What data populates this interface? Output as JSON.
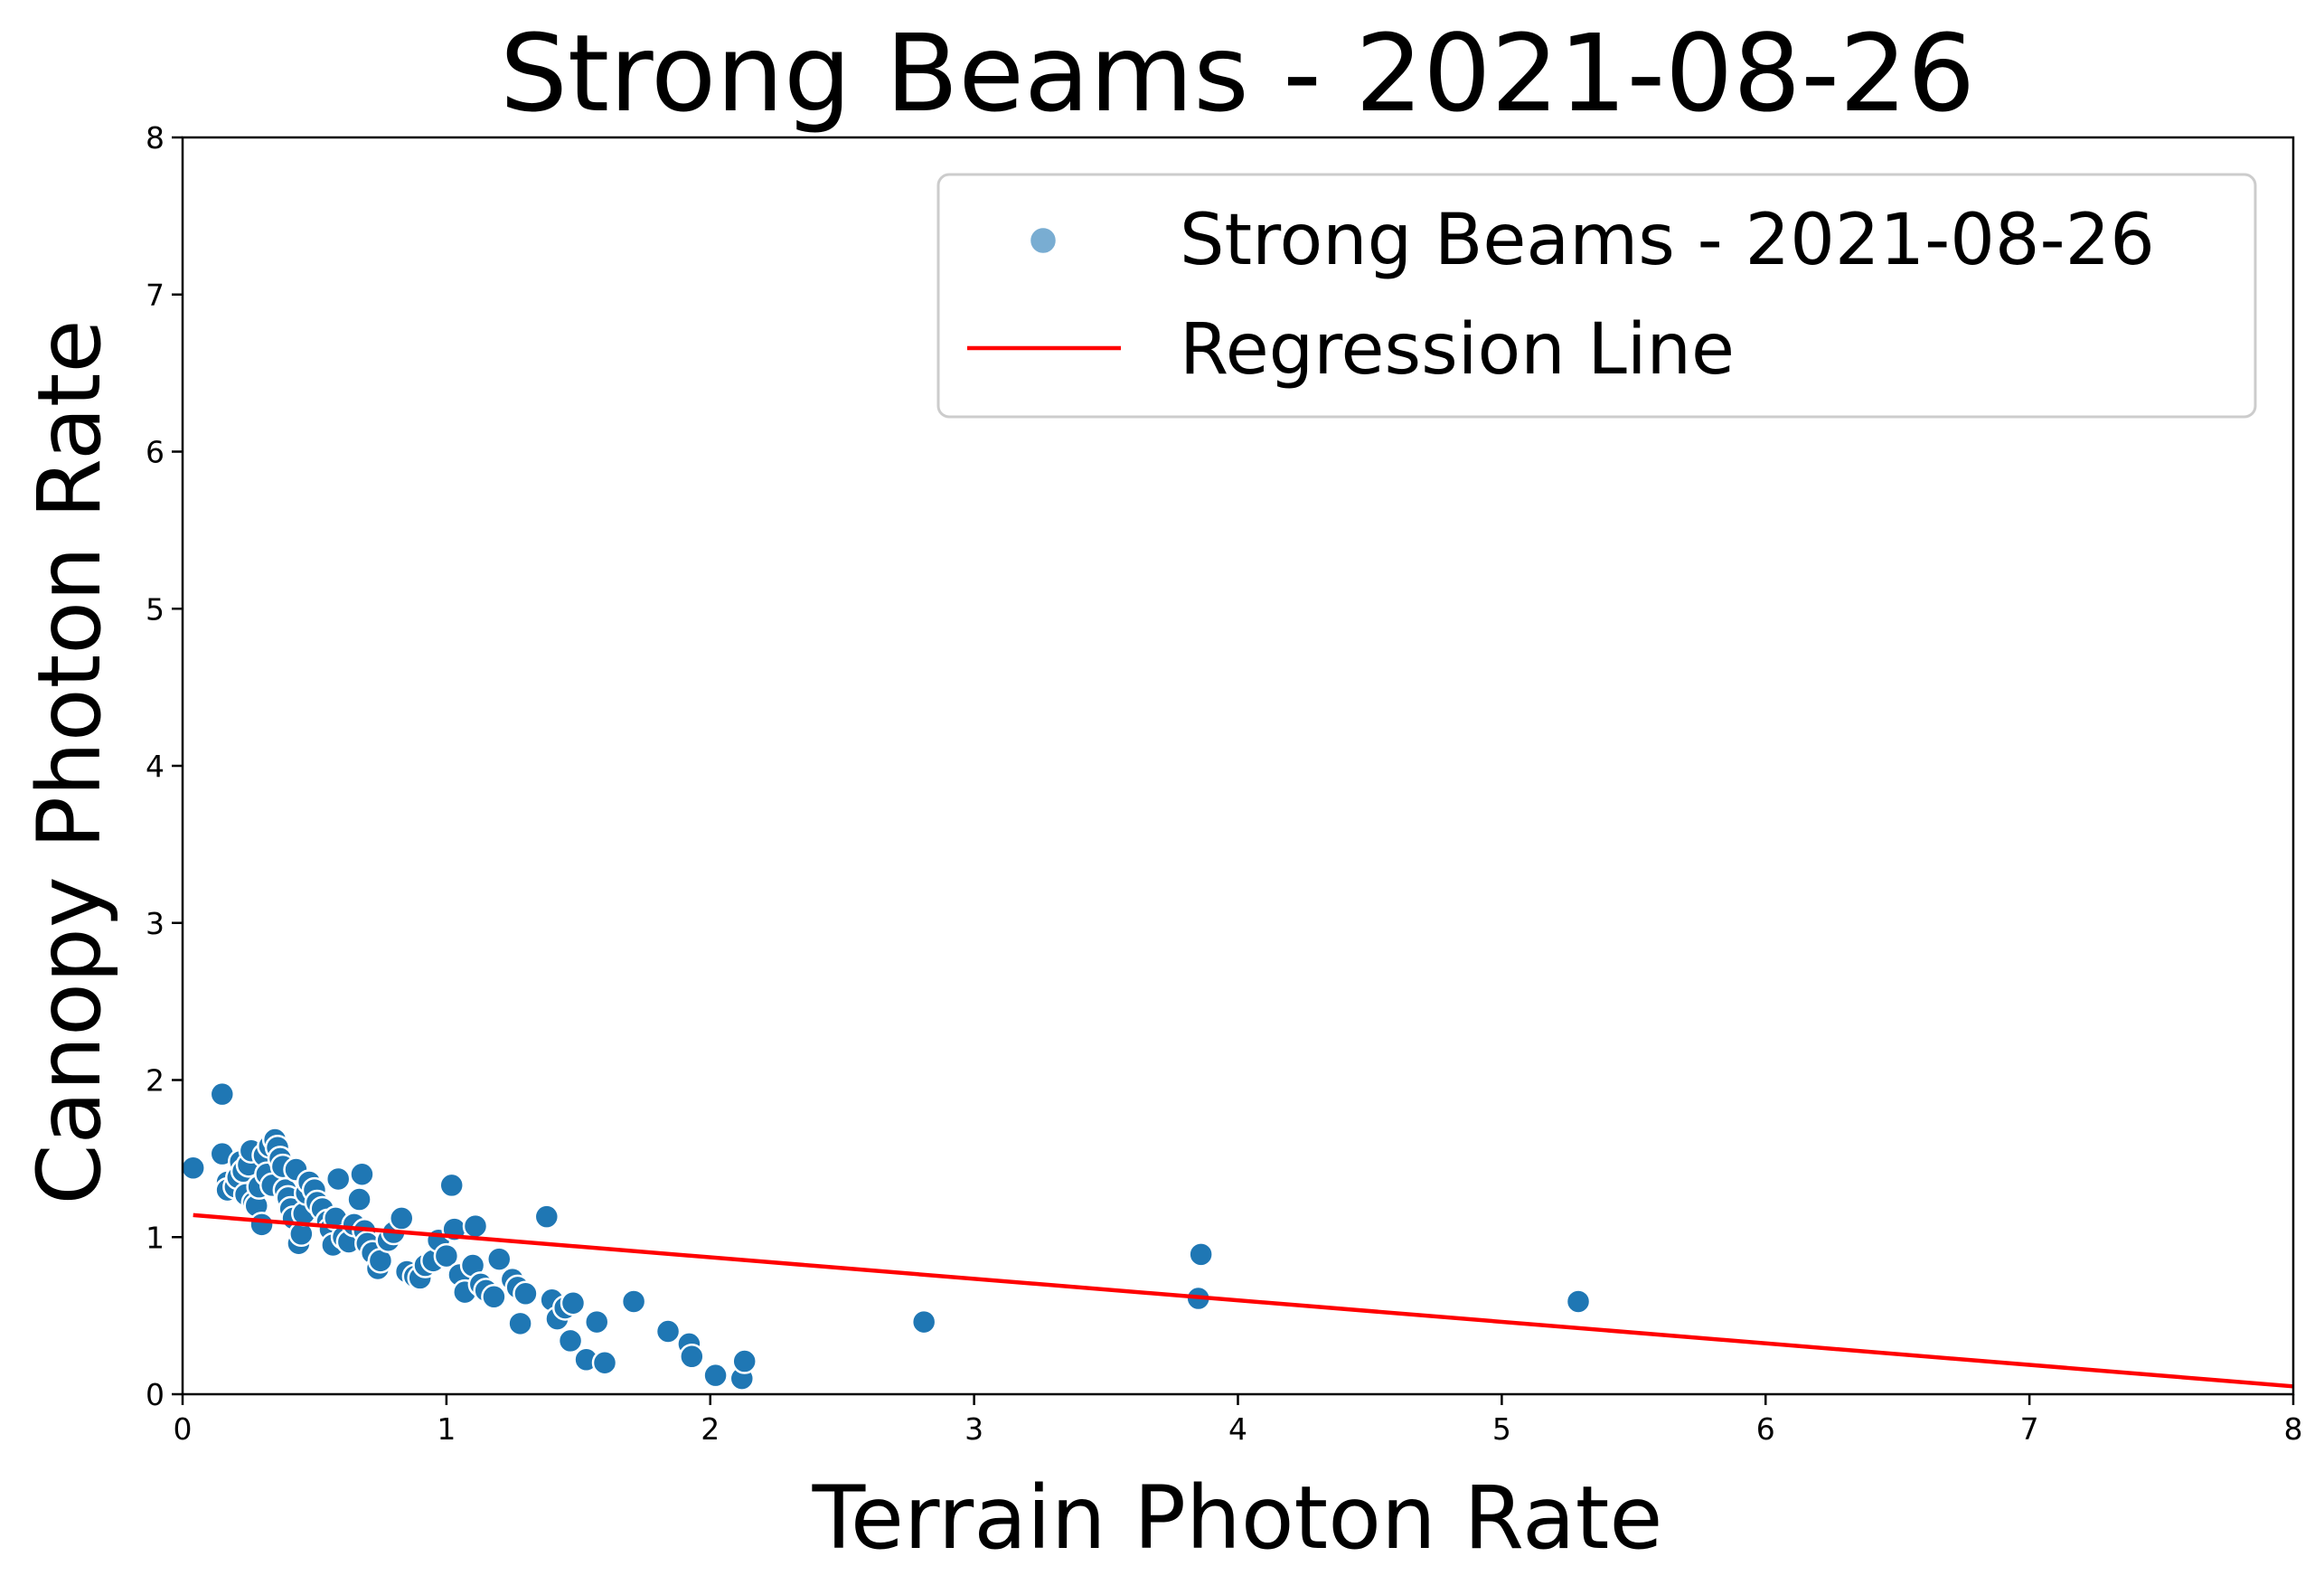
{
  "chart_data": {
    "type": "scatter",
    "title": "Strong Beams - 2021-08-26",
    "xlabel": "Terrain Photon Rate",
    "ylabel": "Canopy Photon Rate",
    "xlim": [
      0,
      8
    ],
    "ylim": [
      0,
      8
    ],
    "xticks": [
      "0",
      "1",
      "2",
      "3",
      "4",
      "5",
      "6",
      "7",
      "8"
    ],
    "yticks": [
      "0",
      "1",
      "2",
      "3",
      "4",
      "5",
      "6",
      "7",
      "8"
    ],
    "grid": false,
    "legend_position": "top-right",
    "colors": {
      "points": "#1f77b4",
      "point_edge": "#ffffff",
      "regression": "#ff0000"
    },
    "series": [
      {
        "name": "Strong Beams - 2021-08-26",
        "kind": "scatter",
        "points": [
          [
            0.04,
            1.44
          ],
          [
            0.15,
            1.91
          ],
          [
            0.15,
            1.53
          ],
          [
            0.17,
            1.35
          ],
          [
            0.17,
            1.3
          ],
          [
            0.2,
            1.32
          ],
          [
            0.21,
            1.38
          ],
          [
            0.22,
            1.48
          ],
          [
            0.23,
            1.42
          ],
          [
            0.24,
            1.27
          ],
          [
            0.25,
            1.46
          ],
          [
            0.26,
            1.55
          ],
          [
            0.27,
            1.22
          ],
          [
            0.28,
            1.2
          ],
          [
            0.29,
            1.32
          ],
          [
            0.3,
            1.08
          ],
          [
            0.31,
            1.52
          ],
          [
            0.32,
            1.4
          ],
          [
            0.33,
            1.58
          ],
          [
            0.34,
            1.33
          ],
          [
            0.35,
            1.62
          ],
          [
            0.36,
            1.57
          ],
          [
            0.37,
            1.5
          ],
          [
            0.38,
            1.45
          ],
          [
            0.39,
            1.3
          ],
          [
            0.4,
            1.25
          ],
          [
            0.41,
            1.18
          ],
          [
            0.42,
            1.12
          ],
          [
            0.43,
            1.43
          ],
          [
            0.44,
            0.96
          ],
          [
            0.45,
            1.02
          ],
          [
            0.46,
            1.15
          ],
          [
            0.47,
            1.28
          ],
          [
            0.48,
            1.35
          ],
          [
            0.5,
            1.3
          ],
          [
            0.51,
            1.22
          ],
          [
            0.53,
            1.18
          ],
          [
            0.55,
            1.1
          ],
          [
            0.56,
            1.05
          ],
          [
            0.57,
            0.95
          ],
          [
            0.58,
            1.12
          ],
          [
            0.59,
            1.37
          ],
          [
            0.61,
            1.0
          ],
          [
            0.63,
            0.97
          ],
          [
            0.65,
            1.08
          ],
          [
            0.67,
            1.24
          ],
          [
            0.68,
            1.4
          ],
          [
            0.69,
            1.04
          ],
          [
            0.7,
            0.96
          ],
          [
            0.72,
            0.9
          ],
          [
            0.74,
            0.8
          ],
          [
            0.75,
            0.85
          ],
          [
            0.78,
            0.98
          ],
          [
            0.8,
            1.03
          ],
          [
            0.83,
            1.12
          ],
          [
            0.85,
            0.78
          ],
          [
            0.88,
            0.75
          ],
          [
            0.9,
            0.74
          ],
          [
            0.92,
            0.82
          ],
          [
            0.95,
            0.85
          ],
          [
            0.97,
            0.98
          ],
          [
            1.0,
            0.88
          ],
          [
            1.02,
            1.33
          ],
          [
            1.03,
            1.05
          ],
          [
            1.05,
            0.76
          ],
          [
            1.07,
            0.65
          ],
          [
            1.1,
            0.82
          ],
          [
            1.11,
            1.07
          ],
          [
            1.13,
            0.7
          ],
          [
            1.15,
            0.66
          ],
          [
            1.18,
            0.62
          ],
          [
            1.2,
            0.86
          ],
          [
            1.25,
            0.73
          ],
          [
            1.27,
            0.68
          ],
          [
            1.28,
            0.45
          ],
          [
            1.3,
            0.64
          ],
          [
            1.38,
            1.13
          ],
          [
            1.4,
            0.6
          ],
          [
            1.42,
            0.48
          ],
          [
            1.45,
            0.55
          ],
          [
            1.47,
            0.34
          ],
          [
            1.48,
            0.58
          ],
          [
            1.53,
            0.22
          ],
          [
            1.57,
            0.46
          ],
          [
            1.6,
            0.2
          ],
          [
            1.71,
            0.59
          ],
          [
            1.84,
            0.4
          ],
          [
            1.92,
            0.32
          ],
          [
            1.93,
            0.24
          ],
          [
            2.02,
            0.12
          ],
          [
            2.12,
            0.1
          ],
          [
            2.13,
            0.21
          ],
          [
            2.81,
            0.46
          ],
          [
            3.85,
            0.61
          ],
          [
            3.86,
            0.89
          ],
          [
            5.29,
            0.59
          ]
        ]
      },
      {
        "name": "Regression Line",
        "kind": "line",
        "points": [
          [
            0.04,
            1.14
          ],
          [
            8.0,
            0.05
          ]
        ]
      }
    ]
  }
}
